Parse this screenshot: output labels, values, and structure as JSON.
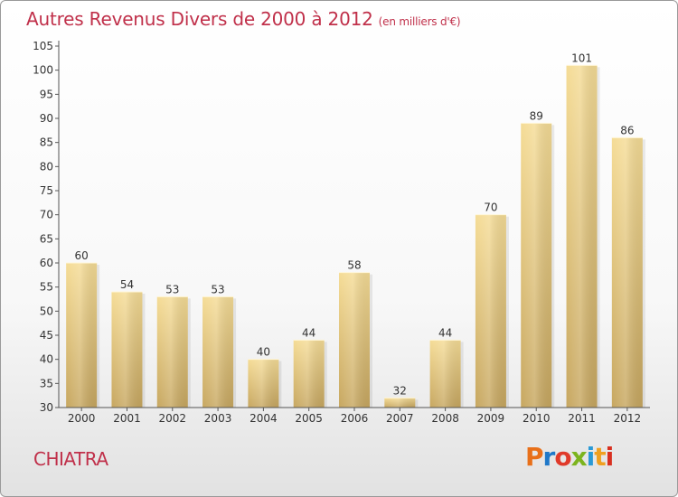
{
  "header": {
    "title": "Autres Revenus Divers de 2000 à 2012",
    "subtitle": "(en milliers d'€)"
  },
  "footer": {
    "place": "CHIATRA",
    "logo": "Proxiti",
    "logo_colors": [
      "#e8701a",
      "#1f78c8",
      "#e03a2a",
      "#7cb41e",
      "#2a9ad6",
      "#f0a020",
      "#d83020"
    ]
  },
  "chart_data": {
    "type": "bar",
    "categories": [
      "2000",
      "2001",
      "2002",
      "2003",
      "2004",
      "2005",
      "2006",
      "2007",
      "2008",
      "2009",
      "2010",
      "2011",
      "2012"
    ],
    "values": [
      60,
      54,
      53,
      53,
      40,
      44,
      58,
      32,
      44,
      70,
      89,
      101,
      86
    ],
    "data_labels": [
      "60",
      "54",
      "53",
      "53",
      "40",
      "44",
      "58",
      "32",
      "44",
      "70",
      "89",
      "101",
      "86"
    ],
    "ylim": [
      30,
      105
    ],
    "yticks": [
      "30",
      "35",
      "40",
      "45",
      "50",
      "55",
      "60",
      "65",
      "70",
      "75",
      "80",
      "85",
      "90",
      "95",
      "100",
      "105"
    ],
    "grid": false,
    "bar_color_light": "#f5dc96",
    "bar_color_dark": "#c7a760"
  }
}
